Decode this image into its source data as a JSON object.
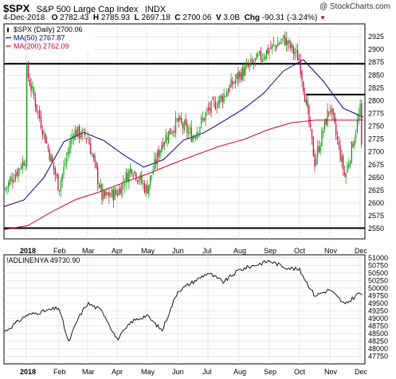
{
  "header": {
    "symbol": "$SPX",
    "name": "S&P 500 Large Cap Index",
    "exchange": "INDX",
    "credit": "@ StockCharts.com",
    "date": "4-Dec-2018",
    "o_label": "O",
    "o": "2782.43",
    "h_label": "H",
    "h": "2785.93",
    "l_label": "L",
    "l": "2697.18",
    "c_label": "C",
    "c": "2700.06",
    "v_label": "V",
    "v": "3.0B",
    "chg_label": "Chg",
    "chg": "-90.31 (-3.24%)"
  },
  "colors": {
    "up": "#009900",
    "down": "#cc0033",
    "ma50": "#000099",
    "ma200": "#cc0033",
    "grid": "#d8d8d8"
  },
  "chart_data": [
    {
      "type": "candlestick",
      "title": "$SPX (Daily) 2700.06",
      "legend": [
        "$SPX (Daily) 2700.06",
        "MA(50) 2767.87",
        "MA(200) 2762.09"
      ],
      "legend_placement": "top-left",
      "ylim": [
        2530,
        2950
      ],
      "yticks": [
        2550,
        2575,
        2600,
        2625,
        2650,
        2675,
        2700,
        2725,
        2750,
        2775,
        2800,
        2825,
        2850,
        2875,
        2900,
        2925
      ],
      "x_month_labels": [
        "2018",
        "Feb",
        "Mar",
        "Apr",
        "May",
        "Jun",
        "Jul",
        "Aug",
        "Sep",
        "Oct",
        "Nov",
        "Dec"
      ],
      "horizontal_lines": [
        2872,
        2812,
        2551
      ],
      "series": [
        {
          "name": "$SPX (Daily)",
          "kind": "candles",
          "monthly_path": [
            {
              "m": "Dec",
              "v": 2625
            },
            {
              "m": "2018",
              "v": 2690
            },
            {
              "m": "Jan",
              "v": 2860
            },
            {
              "m": "Feb",
              "v": 2630
            },
            {
              "m": "Feb",
              "v": 2740
            },
            {
              "m": "Mar",
              "v": 2730
            },
            {
              "m": "Mar",
              "v": 2610
            },
            {
              "m": "Apr",
              "v": 2620
            },
            {
              "m": "Apr",
              "v": 2670
            },
            {
              "m": "May",
              "v": 2625
            },
            {
              "m": "May",
              "v": 2720
            },
            {
              "m": "Jun",
              "v": 2760
            },
            {
              "m": "Jun",
              "v": 2730
            },
            {
              "m": "Jul",
              "v": 2780
            },
            {
              "m": "Jul",
              "v": 2810
            },
            {
              "m": "Aug",
              "v": 2850
            },
            {
              "m": "Sep",
              "v": 2900
            },
            {
              "m": "Sep",
              "v": 2920
            },
            {
              "m": "Oct",
              "v": 2880
            },
            {
              "m": "Oct",
              "v": 2680
            },
            {
              "m": "Nov",
              "v": 2790
            },
            {
              "m": "Nov",
              "v": 2650
            },
            {
              "m": "Dec",
              "v": 2780
            },
            {
              "m": "Dec",
              "v": 2700
            }
          ]
        },
        {
          "name": "MA(50)",
          "last": 2767.87,
          "path": [
            2593,
            2606,
            2650,
            2720,
            2738,
            2722,
            2694,
            2670,
            2685,
            2723,
            2737,
            2760,
            2784,
            2814,
            2858,
            2880,
            2838,
            2785,
            2768
          ]
        },
        {
          "name": "MA(200)",
          "last": 2762.09,
          "path": [
            2548,
            2556,
            2583,
            2607,
            2622,
            2640,
            2657,
            2676,
            2694,
            2711,
            2724,
            2743,
            2757,
            2762,
            2762,
            2762
          ]
        }
      ]
    },
    {
      "type": "line",
      "title": "!ADLINENYA 49730.90",
      "legend": [
        "!ADLINENYA 49730.90"
      ],
      "legend_placement": "top-left",
      "ylim": [
        47500,
        51100
      ],
      "yticks": [
        47750,
        48000,
        48250,
        48500,
        48750,
        49000,
        49250,
        49500,
        49750,
        50000,
        50250,
        50500,
        50750,
        51000
      ],
      "x_month_labels": [
        "2018",
        "Feb",
        "Mar",
        "Apr",
        "May",
        "Jun",
        "Jul",
        "Aug",
        "Sep",
        "Oct",
        "Nov",
        "Dec"
      ],
      "series": [
        {
          "name": "!ADLINENYA",
          "last": 49730.9,
          "monthly_path": [
            {
              "m": "Dec",
              "v": 48550
            },
            {
              "m": "Jan",
              "v": 49100
            },
            {
              "m": "Feb",
              "v": 49350
            },
            {
              "m": "Feb",
              "v": 48200
            },
            {
              "m": "Feb",
              "v": 49000
            },
            {
              "m": "Mar",
              "v": 49500
            },
            {
              "m": "Mar",
              "v": 49250
            },
            {
              "m": "Apr",
              "v": 48300
            },
            {
              "m": "Apr",
              "v": 48900
            },
            {
              "m": "May",
              "v": 49100
            },
            {
              "m": "May",
              "v": 48600
            },
            {
              "m": "Jun",
              "v": 49900
            },
            {
              "m": "Jun",
              "v": 50200
            },
            {
              "m": "Jul",
              "v": 50500
            },
            {
              "m": "Jul",
              "v": 50200
            },
            {
              "m": "Aug",
              "v": 50600
            },
            {
              "m": "Sep",
              "v": 50900
            },
            {
              "m": "Sep",
              "v": 50700
            },
            {
              "m": "Oct",
              "v": 50600
            },
            {
              "m": "Oct",
              "v": 49750
            },
            {
              "m": "Nov",
              "v": 49950
            },
            {
              "m": "Nov",
              "v": 49450
            },
            {
              "m": "Dec",
              "v": 49870
            },
            {
              "m": "Dec",
              "v": 49730
            }
          ]
        }
      ]
    }
  ]
}
